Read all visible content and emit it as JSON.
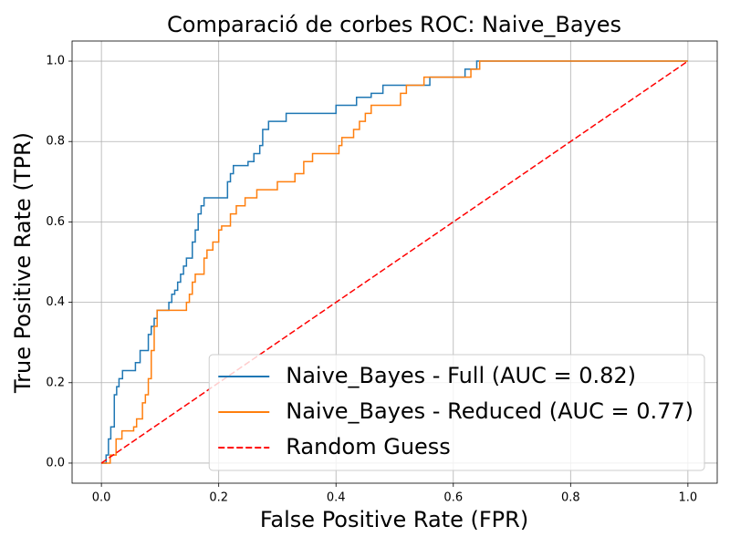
{
  "chart_data": {
    "type": "line",
    "title": "Comparació de corbes ROC: Naive_Bayes",
    "x_label": "False Positive Rate (FPR)",
    "y_label": "True Positive Rate (TPR)",
    "xlim": [
      -0.05,
      1.05
    ],
    "ylim": [
      -0.05,
      1.05
    ],
    "xticks": [
      {
        "value": 0,
        "label": "0.0"
      },
      {
        "value": 0.2,
        "label": "0.2"
      },
      {
        "value": 0.4,
        "label": "0.4"
      },
      {
        "value": 0.6,
        "label": "0.6"
      },
      {
        "value": 0.8,
        "label": "0.8"
      },
      {
        "value": 1,
        "label": "1.0"
      }
    ],
    "yticks": [
      {
        "value": 0,
        "label": "0.0"
      },
      {
        "value": 0.2,
        "label": "0.2"
      },
      {
        "value": 0.4,
        "label": "0.4"
      },
      {
        "value": 0.6,
        "label": "0.6"
      },
      {
        "value": 0.8,
        "label": "0.8"
      },
      {
        "value": 1,
        "label": "1.0"
      }
    ],
    "grid": true,
    "legend": "lower right",
    "series": [
      {
        "name": "Naive_Bayes - Full (AUC = 0.82)",
        "color": "#1f77b4",
        "linestyle": "solid",
        "x": [
          0,
          0.008,
          0.008,
          0.012,
          0.012,
          0.016,
          0.016,
          0.022,
          0.022,
          0.026,
          0.026,
          0.03,
          0.03,
          0.036,
          0.036,
          0.058,
          0.058,
          0.066,
          0.066,
          0.08,
          0.08,
          0.085,
          0.085,
          0.09,
          0.09,
          0.095,
          0.095,
          0.115,
          0.115,
          0.12,
          0.12,
          0.125,
          0.125,
          0.13,
          0.13,
          0.135,
          0.135,
          0.14,
          0.14,
          0.145,
          0.145,
          0.155,
          0.155,
          0.16,
          0.16,
          0.165,
          0.165,
          0.17,
          0.17,
          0.175,
          0.175,
          0.215,
          0.215,
          0.22,
          0.22,
          0.225,
          0.225,
          0.25,
          0.25,
          0.26,
          0.26,
          0.27,
          0.27,
          0.275,
          0.275,
          0.285,
          0.285,
          0.315,
          0.315,
          0.4,
          0.4,
          0.435,
          0.435,
          0.46,
          0.46,
          0.48,
          0.48,
          0.56,
          0.56,
          0.62,
          0.62,
          0.64,
          0.64,
          1
        ],
        "values": [
          0,
          0,
          0.02,
          0.02,
          0.06,
          0.06,
          0.09,
          0.09,
          0.17,
          0.17,
          0.19,
          0.19,
          0.21,
          0.21,
          0.23,
          0.23,
          0.25,
          0.25,
          0.28,
          0.28,
          0.32,
          0.32,
          0.34,
          0.34,
          0.36,
          0.36,
          0.38,
          0.38,
          0.4,
          0.4,
          0.42,
          0.42,
          0.43,
          0.43,
          0.45,
          0.45,
          0.47,
          0.47,
          0.49,
          0.49,
          0.51,
          0.51,
          0.55,
          0.55,
          0.58,
          0.58,
          0.62,
          0.62,
          0.64,
          0.64,
          0.66,
          0.66,
          0.7,
          0.7,
          0.72,
          0.72,
          0.74,
          0.74,
          0.75,
          0.75,
          0.77,
          0.77,
          0.79,
          0.79,
          0.83,
          0.83,
          0.85,
          0.85,
          0.87,
          0.87,
          0.89,
          0.89,
          0.91,
          0.91,
          0.92,
          0.92,
          0.94,
          0.94,
          0.96,
          0.96,
          0.98,
          0.98,
          1,
          1
        ]
      },
      {
        "name": "Naive_Bayes - Reduced (AUC = 0.77)",
        "color": "#ff7f0e",
        "linestyle": "solid",
        "x": [
          0,
          0.015,
          0.015,
          0.025,
          0.025,
          0.035,
          0.035,
          0.055,
          0.055,
          0.06,
          0.06,
          0.07,
          0.07,
          0.075,
          0.075,
          0.08,
          0.08,
          0.085,
          0.085,
          0.09,
          0.09,
          0.095,
          0.095,
          0.145,
          0.145,
          0.15,
          0.15,
          0.155,
          0.155,
          0.16,
          0.16,
          0.175,
          0.175,
          0.18,
          0.18,
          0.19,
          0.19,
          0.2,
          0.2,
          0.205,
          0.205,
          0.22,
          0.22,
          0.23,
          0.23,
          0.245,
          0.245,
          0.265,
          0.265,
          0.3,
          0.3,
          0.33,
          0.33,
          0.345,
          0.345,
          0.36,
          0.36,
          0.405,
          0.405,
          0.41,
          0.41,
          0.43,
          0.43,
          0.44,
          0.44,
          0.45,
          0.45,
          0.46,
          0.46,
          0.51,
          0.51,
          0.52,
          0.52,
          0.55,
          0.55,
          0.63,
          0.63,
          0.645,
          0.645,
          1
        ],
        "values": [
          0,
          0,
          0.02,
          0.02,
          0.06,
          0.06,
          0.08,
          0.08,
          0.09,
          0.09,
          0.11,
          0.11,
          0.15,
          0.15,
          0.17,
          0.17,
          0.21,
          0.21,
          0.28,
          0.28,
          0.34,
          0.34,
          0.38,
          0.38,
          0.4,
          0.4,
          0.42,
          0.42,
          0.45,
          0.45,
          0.47,
          0.47,
          0.51,
          0.51,
          0.53,
          0.53,
          0.55,
          0.55,
          0.58,
          0.58,
          0.59,
          0.59,
          0.62,
          0.62,
          0.64,
          0.64,
          0.66,
          0.66,
          0.68,
          0.68,
          0.7,
          0.7,
          0.72,
          0.72,
          0.75,
          0.75,
          0.77,
          0.77,
          0.79,
          0.79,
          0.81,
          0.81,
          0.83,
          0.83,
          0.85,
          0.85,
          0.87,
          0.87,
          0.89,
          0.89,
          0.92,
          0.92,
          0.94,
          0.94,
          0.96,
          0.96,
          0.98,
          0.98,
          1,
          1
        ]
      },
      {
        "name": "Random Guess",
        "color": "#ff0000",
        "linestyle": "dashed",
        "x": [
          0,
          1
        ],
        "values": [
          0,
          1
        ]
      }
    ]
  }
}
